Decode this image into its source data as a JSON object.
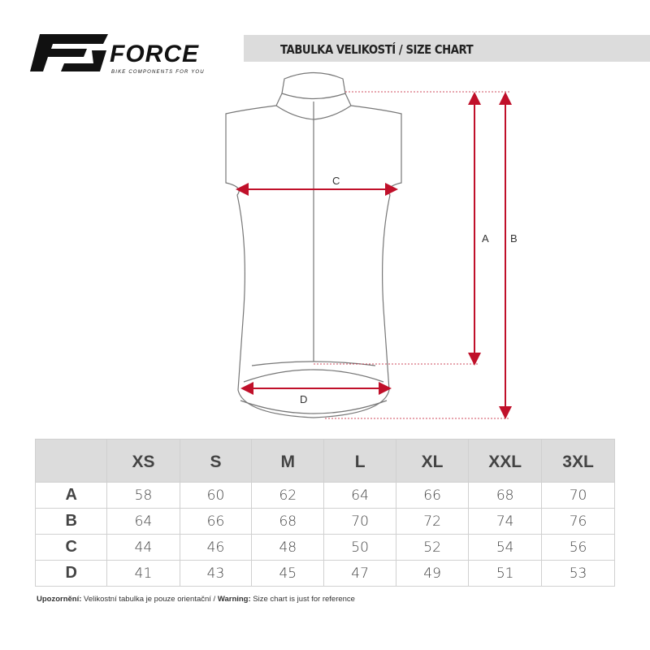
{
  "header": {
    "title": "TABULKA VELIKOSTÍ / SIZE CHART",
    "logo_text": "FORCE",
    "logo_tagline": "BIKE COMPONENTS FOR YOU"
  },
  "diagram": {
    "labels": {
      "a": "A",
      "b": "B",
      "c": "C",
      "d": "D"
    },
    "arrow_color": "#c0102a"
  },
  "table": {
    "columns": [
      "XS",
      "S",
      "M",
      "L",
      "XL",
      "XXL",
      "3XL"
    ],
    "rows": [
      {
        "label": "A",
        "values": [
          "58",
          "60",
          "62",
          "64",
          "66",
          "68",
          "70"
        ]
      },
      {
        "label": "B",
        "values": [
          "64",
          "66",
          "68",
          "70",
          "72",
          "74",
          "76"
        ]
      },
      {
        "label": "C",
        "values": [
          "44",
          "46",
          "48",
          "50",
          "52",
          "54",
          "56"
        ]
      },
      {
        "label": "D",
        "values": [
          "41",
          "43",
          "45",
          "47",
          "49",
          "51",
          "53"
        ]
      }
    ]
  },
  "footer": {
    "warning_cz_label": "Upozornění:",
    "warning_cz_text": " Velikostní tabulka je pouze orientační / ",
    "warning_en_label": "Warning:",
    "warning_en_text": " Size chart is just for reference"
  }
}
